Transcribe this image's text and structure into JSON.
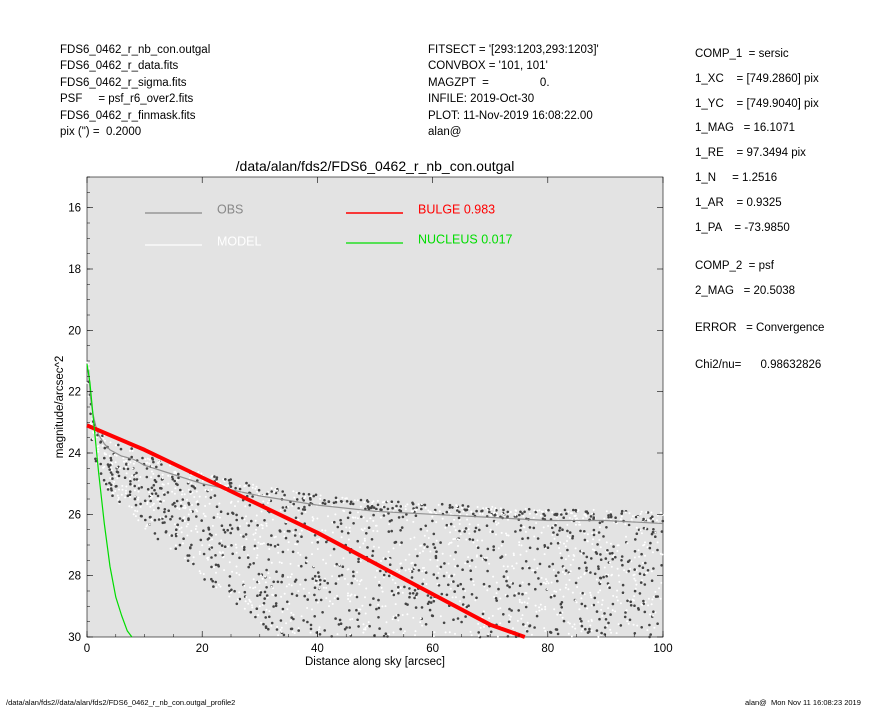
{
  "header_left": [
    "FDS6_0462_r_nb_con.outgal",
    "FDS6_0462_r_data.fits",
    "FDS6_0462_r_sigma.fits",
    "PSF     = psf_r6_over2.fits",
    "FDS6_0462_r_finmask.fits",
    "pix (\") =  0.2000"
  ],
  "header_mid": [
    "FITSECT = '[293:1203,293:1203]'",
    "CONVBOX = '101, 101'",
    "MAGZPT  =                0.",
    "INFILE: 2019-Oct-30",
    "PLOT: 11-Nov-2019 16:08:22.00",
    "alan@"
  ],
  "params": [
    "COMP_1  = sersic",
    "1_XC    = [749.2860] pix",
    "1_YC    = [749.9040] pix",
    "1_MAG   = 16.1071",
    "1_RE    = 97.3494 pix",
    "1_N     = 1.2516",
    "1_AR    = 0.9325",
    "1_PA    = -73.9850",
    "COMP_2  = psf",
    "2_MAG   = 20.5038",
    "ERROR   = Convergence",
    "Chi2/nu=      0.98632826"
  ],
  "footer": {
    "left": "/data/alan/fds2//data/alan/fds2/FDS6_0462_r_nb_con.outgal_profile2",
    "right": "alan@  Mon Nov 11 16:08:23 2019"
  },
  "chart_data": {
    "type": "scatter",
    "title": "/data/alan/fds2/FDS6_0462_r_nb_con.outgal",
    "xlabel": "Distance along sky [arcsec]",
    "ylabel": "magnitude/arcsec^2",
    "xlim": [
      0,
      100
    ],
    "ylim": [
      30,
      15
    ],
    "y_inverted": true,
    "xticks": [
      "0",
      "20",
      "40",
      "60",
      "80",
      "100"
    ],
    "yticks": [
      "16",
      "18",
      "20",
      "22",
      "24",
      "26",
      "28",
      "30"
    ],
    "background": "#e3e3e3",
    "legend_placement": "top",
    "legend": [
      {
        "label": "OBS",
        "color": "#888888"
      },
      {
        "label": "MODEL",
        "color": "#ffffff"
      },
      {
        "label": "BULGE  0.983",
        "color": "#ff0000"
      },
      {
        "label": "NUCLEUS  0.017",
        "color": "#00dd00"
      }
    ],
    "series": [
      {
        "name": "OBS",
        "color": "#444444",
        "x": [
          0.3,
          0.6,
          1,
          1.5,
          2,
          3,
          4,
          5,
          6,
          8,
          10,
          15,
          20,
          30,
          40,
          50,
          60,
          70,
          80,
          90,
          100
        ],
        "y": [
          21.3,
          22.2,
          22.7,
          23.1,
          23.4,
          23.7,
          23.9,
          24.0,
          24.1,
          24.2,
          24.4,
          24.7,
          25.0,
          25.4,
          25.7,
          25.9,
          26.0,
          26.1,
          26.2,
          26.2,
          26.3
        ]
      },
      {
        "name": "BULGE  0.983",
        "color": "#ff0000",
        "x": [
          0,
          10,
          20,
          30,
          40,
          50,
          60,
          70,
          76
        ],
        "y": [
          23.1,
          23.9,
          24.8,
          25.7,
          26.6,
          27.6,
          28.6,
          29.6,
          30.0
        ]
      },
      {
        "name": "NUCLEUS  0.017",
        "color": "#00dd00",
        "x": [
          0,
          0.5,
          1,
          2,
          3,
          4,
          5,
          6,
          7,
          7.8
        ],
        "y": [
          21.1,
          21.7,
          22.7,
          24.6,
          26.3,
          27.7,
          28.7,
          29.3,
          29.8,
          30.0
        ]
      }
    ]
  }
}
